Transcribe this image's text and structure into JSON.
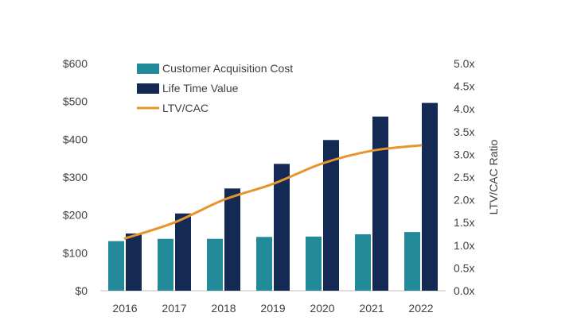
{
  "chart_data": {
    "type": "bar",
    "title": "",
    "categories": [
      "2016",
      "2017",
      "2018",
      "2019",
      "2020",
      "2021",
      "2022"
    ],
    "series": [
      {
        "name": "Customer Acquisition Cost",
        "kind": "bar",
        "axis": "left",
        "color": "#228a98",
        "values": [
          131,
          137,
          137,
          142,
          143,
          149,
          155
        ]
      },
      {
        "name": "Life Time Value",
        "kind": "bar",
        "axis": "left",
        "color": "#142a55",
        "values": [
          151,
          204,
          270,
          335,
          398,
          460,
          496
        ]
      },
      {
        "name": "LTV/CAC",
        "kind": "line",
        "axis": "right",
        "color": "#e8942d",
        "values": [
          1.15,
          1.5,
          2.0,
          2.35,
          2.8,
          3.08,
          3.2
        ]
      }
    ],
    "y_left": {
      "min": 0,
      "max": 600,
      "step": 100,
      "tick_labels": [
        "$0",
        "$100",
        "$200",
        "$300",
        "$400",
        "$500",
        "$600"
      ]
    },
    "y_right": {
      "label": "LTV/CAC Ratio",
      "min": 0,
      "max": 5,
      "step": 0.5,
      "tick_labels": [
        "0.0x",
        "0.5x",
        "1.0x",
        "1.5x",
        "2.0x",
        "2.5x",
        "3.0x",
        "3.5x",
        "4.0x",
        "4.5x",
        "5.0x"
      ]
    },
    "grid": false,
    "legend_position": "top-left"
  }
}
